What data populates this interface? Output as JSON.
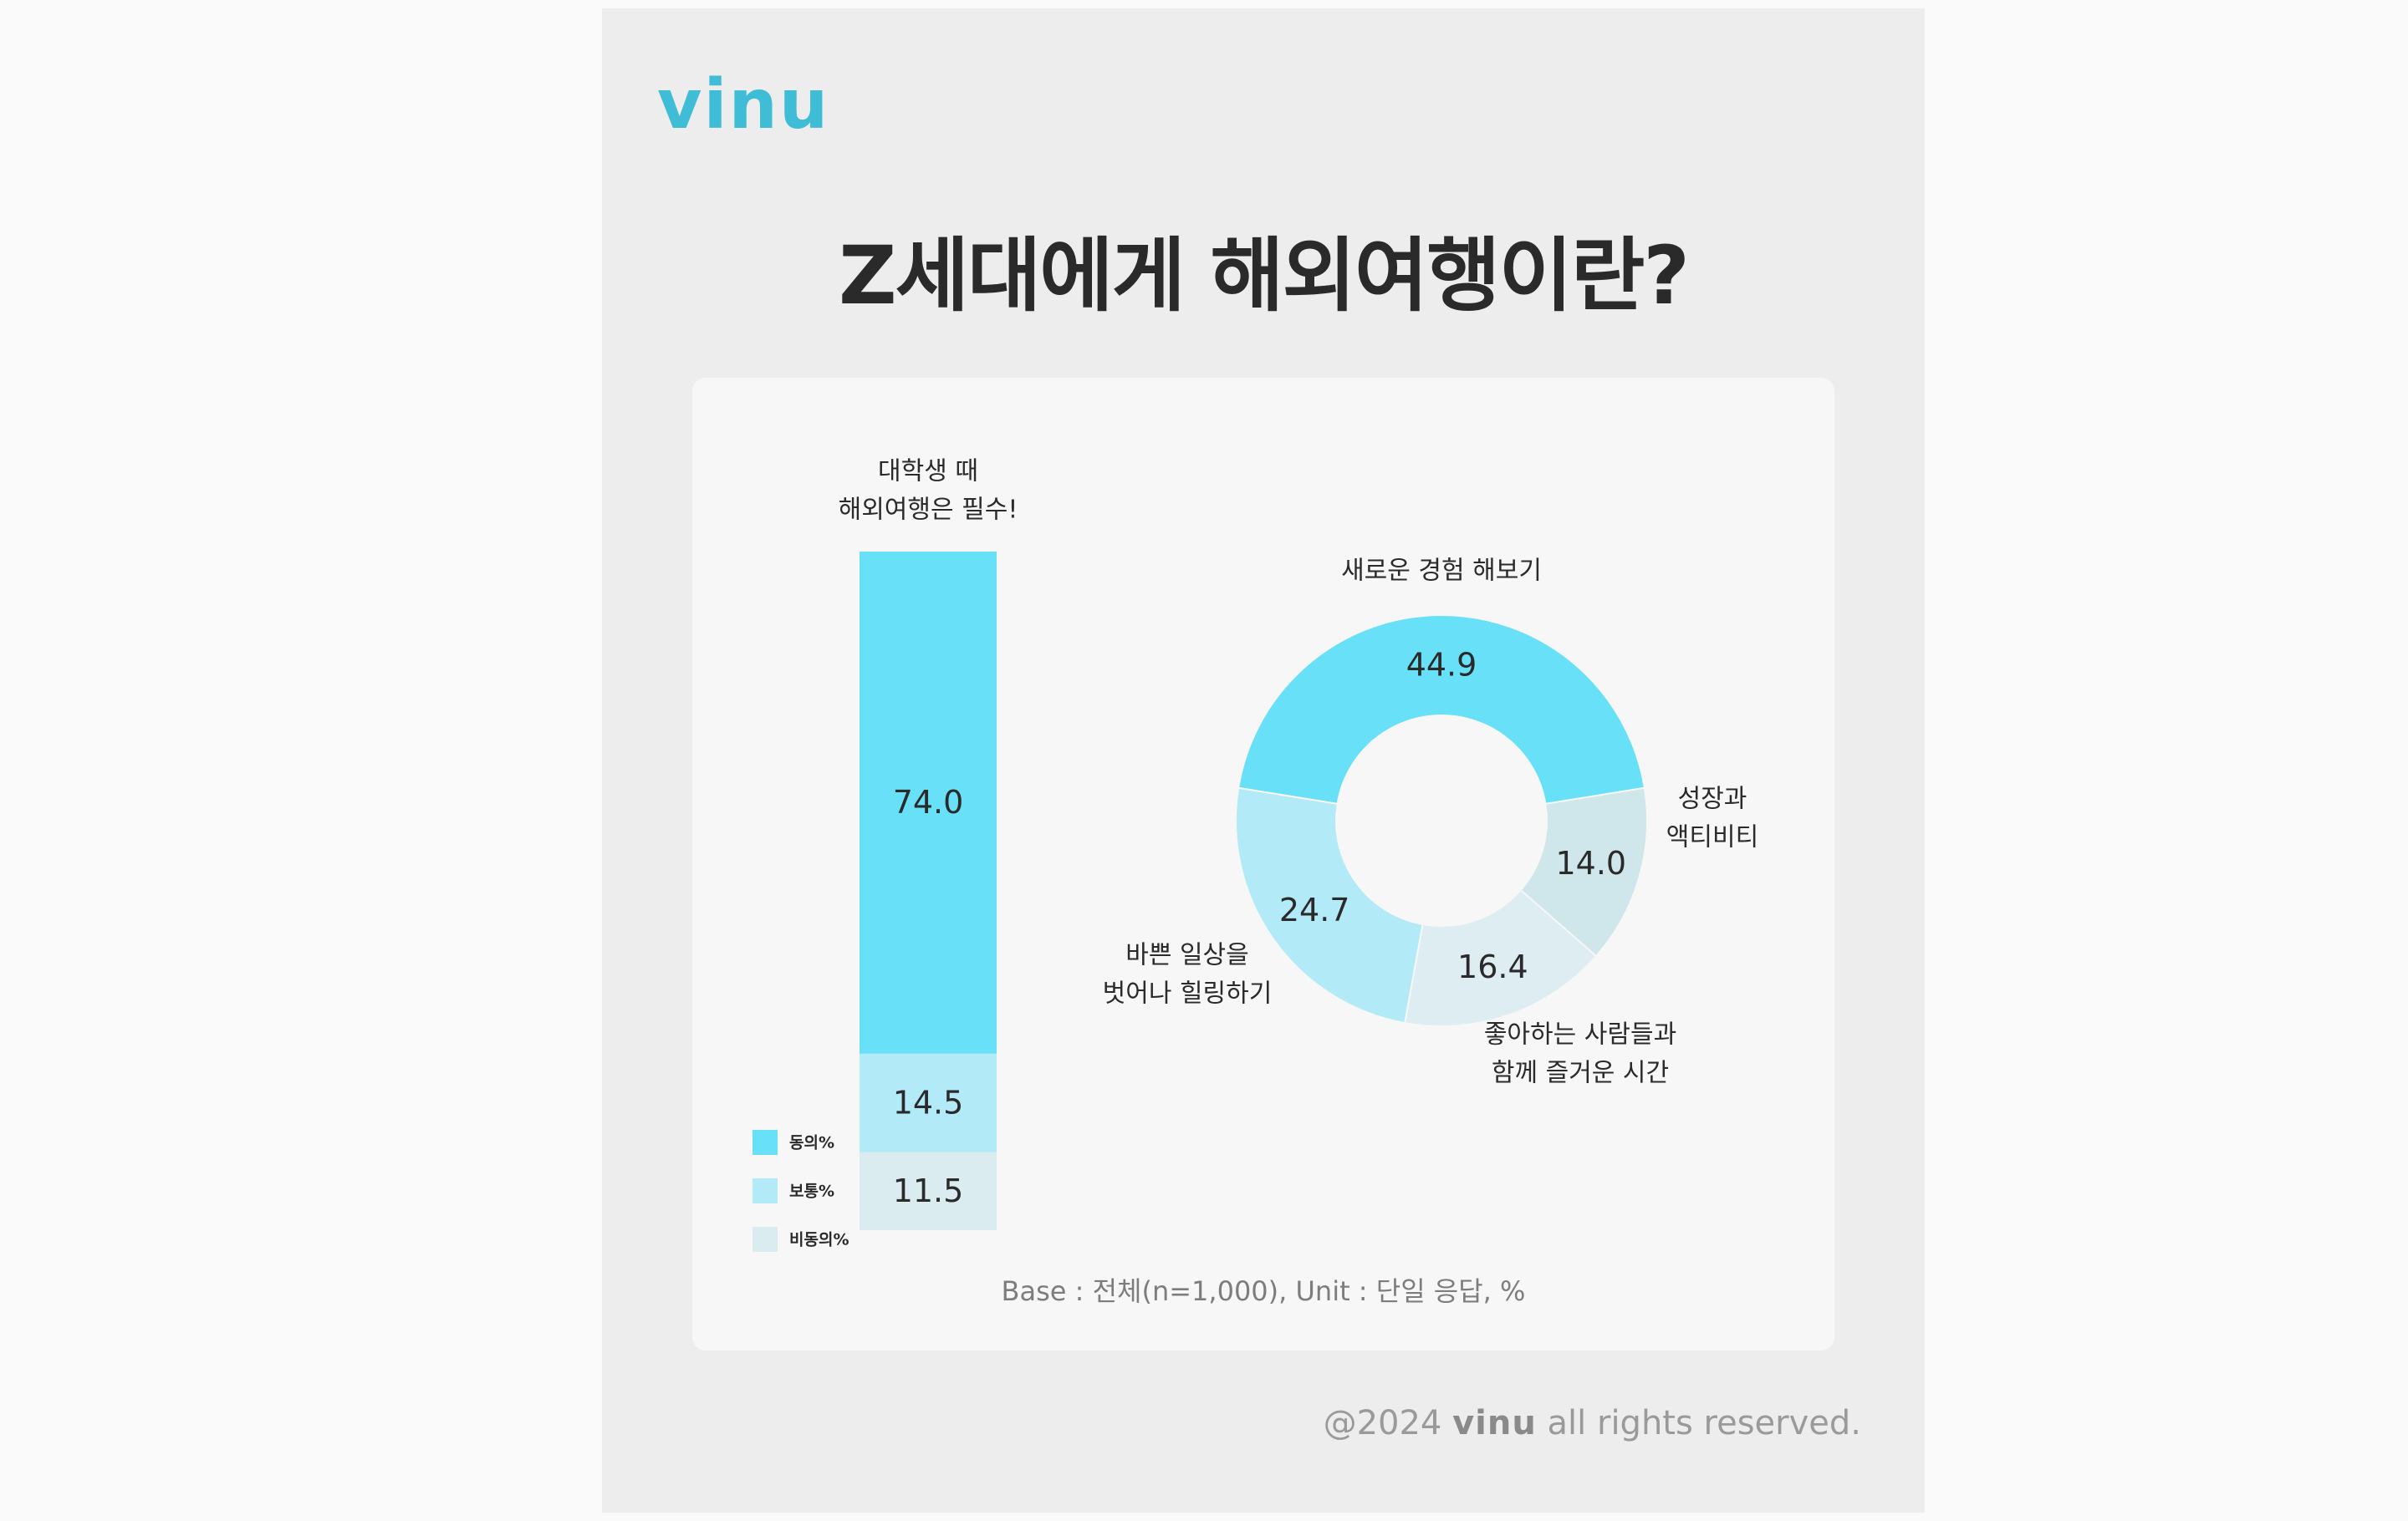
{
  "brand": {
    "logo_text": "vinu",
    "color": "#3fbcd6"
  },
  "title": "Z세대에게 해외여행이란?",
  "footnote": "Base : 전체(n=1,000), Unit : 단일 응답, %",
  "copyright": {
    "prefix": "@2024",
    "brand": "vinu",
    "suffix": "all rights reserved."
  },
  "colors": {
    "agree": "#68e0f7",
    "neutral": "#b3eaf7",
    "disagree": "#dbecf0",
    "ring_teal": "#cfe7ea",
    "text": "#2a2a2a"
  },
  "chart_data": [
    {
      "type": "bar",
      "stacked": true,
      "title_lines": [
        "대학생 때",
        "해외여행은 필수!"
      ],
      "series": [
        {
          "name": "동의%",
          "value": 74.0,
          "color": "#68e0f7",
          "label": "74.0"
        },
        {
          "name": "보통%",
          "value": 14.5,
          "color": "#b3eaf7",
          "label": "14.5"
        },
        {
          "name": "비동의%",
          "value": 11.5,
          "color": "#dbecf0",
          "label": "11.5"
        }
      ],
      "legend": [
        "동의%",
        "보통%",
        "비동의%"
      ],
      "legend_position": "bottom-left"
    },
    {
      "type": "pie",
      "donut": true,
      "slices": [
        {
          "label_lines": [
            "새로운 경험 해보기"
          ],
          "value": 44.9,
          "value_label": "44.9",
          "color": "#68e0f7"
        },
        {
          "label_lines": [
            "성장과",
            "액티비티"
          ],
          "value": 14.0,
          "value_label": "14.0",
          "color": "#cfe7ea"
        },
        {
          "label_lines": [
            "좋아하는 사람들과",
            "함께 즐거운 시간"
          ],
          "value": 16.4,
          "value_label": "16.4",
          "color": "#deedf2"
        },
        {
          "label_lines": [
            "바쁜 일상을",
            "벗어나 힐링하기"
          ],
          "value": 24.7,
          "value_label": "24.7",
          "color": "#b3eaf7"
        }
      ]
    }
  ]
}
